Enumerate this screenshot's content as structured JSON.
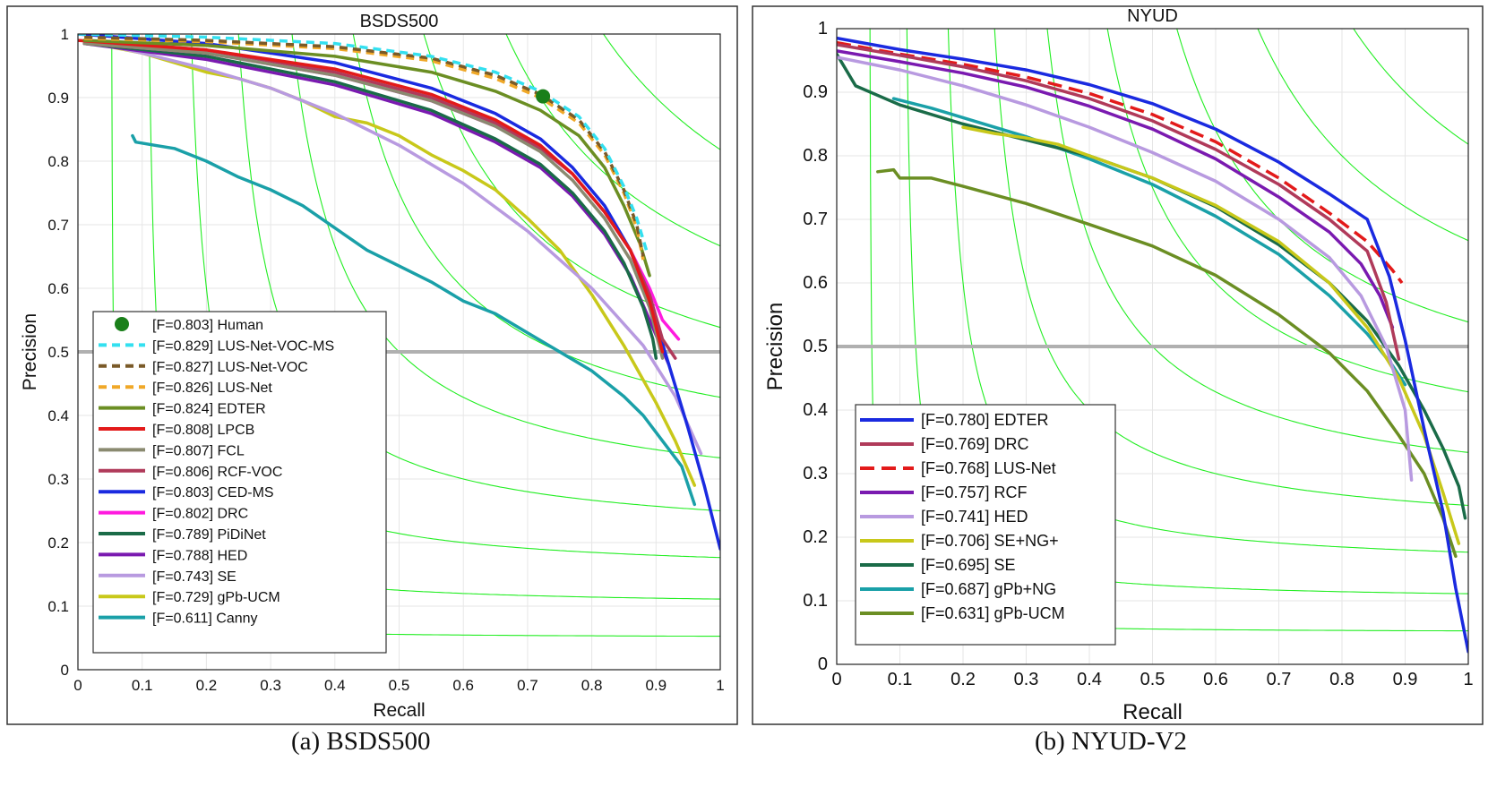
{
  "captions": {
    "left": "(a) BSDS500",
    "right": "(b) NYUD-V2"
  },
  "chart_data": [
    {
      "type": "line",
      "title": "BSDS500",
      "xlabel": "Recall",
      "ylabel": "Precision",
      "xlim": [
        0,
        1
      ],
      "ylim": [
        0,
        1
      ],
      "xticks": [
        0,
        0.1,
        0.2,
        0.3,
        0.4,
        0.5,
        0.6,
        0.7,
        0.8,
        0.9,
        1
      ],
      "yticks": [
        0,
        0.1,
        0.2,
        0.3,
        0.4,
        0.5,
        0.6,
        0.7,
        0.8,
        0.9,
        1
      ],
      "xtick_labels": [
        "0",
        "0.1",
        "0.2",
        "0.3",
        "0.4",
        "0.5",
        "0.6",
        "0.7",
        "0.8",
        "0.9",
        "1"
      ],
      "ytick_labels": [
        "0",
        "0.1",
        "0.2",
        "0.3",
        "0.4",
        "0.5",
        "0.6",
        "0.7",
        "0.8",
        "0.9",
        "1"
      ],
      "grid": true,
      "legend_position": "bottom-left",
      "iso_f": [
        0.1,
        0.2,
        0.3,
        0.4,
        0.5,
        0.6,
        0.7,
        0.8,
        0.9
      ],
      "reference_line": 0.5,
      "human_point": {
        "name": "[F=0.803] Human",
        "x": 0.724,
        "y": 0.902,
        "color": "#1a7f1a"
      },
      "series": [
        {
          "name": "[F=0.829] LUS-Net-VOC-MS",
          "color": "#33e0f0",
          "dash": "9,6",
          "x": [
            0,
            0.2,
            0.4,
            0.55,
            0.65,
            0.72,
            0.78,
            0.82,
            0.85,
            0.87,
            0.885
          ],
          "y": [
            1,
            0.995,
            0.985,
            0.965,
            0.94,
            0.91,
            0.87,
            0.82,
            0.76,
            0.71,
            0.66
          ]
        },
        {
          "name": "[F=0.827] LUS-Net-VOC",
          "color": "#7a5a28",
          "dash": "9,6",
          "x": [
            0.01,
            0.2,
            0.4,
            0.55,
            0.65,
            0.72,
            0.78,
            0.82,
            0.85,
            0.87,
            0.88
          ],
          "y": [
            0.995,
            0.99,
            0.98,
            0.962,
            0.935,
            0.905,
            0.865,
            0.815,
            0.755,
            0.7,
            0.65
          ]
        },
        {
          "name": "[F=0.826] LUS-Net",
          "color": "#f0a828",
          "dash": "9,6",
          "x": [
            0.01,
            0.2,
            0.4,
            0.55,
            0.65,
            0.72,
            0.78,
            0.82,
            0.85,
            0.87,
            0.88
          ],
          "y": [
            0.993,
            0.988,
            0.977,
            0.958,
            0.93,
            0.9,
            0.86,
            0.81,
            0.75,
            0.695,
            0.645
          ]
        },
        {
          "name": "[F=0.824] EDTER",
          "color": "#6b8e23",
          "dash": "",
          "x": [
            0.01,
            0.2,
            0.4,
            0.55,
            0.65,
            0.72,
            0.78,
            0.82,
            0.85,
            0.875,
            0.89
          ],
          "y": [
            0.99,
            0.982,
            0.965,
            0.94,
            0.91,
            0.88,
            0.84,
            0.79,
            0.73,
            0.67,
            0.62
          ]
        },
        {
          "name": "[F=0.808] LPCB",
          "color": "#e31a1a",
          "dash": "",
          "x": [
            0,
            0.2,
            0.4,
            0.55,
            0.65,
            0.72,
            0.77,
            0.82,
            0.86,
            0.89,
            0.91
          ],
          "y": [
            0.99,
            0.975,
            0.945,
            0.905,
            0.865,
            0.825,
            0.78,
            0.72,
            0.66,
            0.58,
            0.5
          ]
        },
        {
          "name": "[F=0.807] FCL",
          "color": "#8a8a70",
          "dash": "",
          "x": [
            0.01,
            0.2,
            0.4,
            0.55,
            0.65,
            0.72,
            0.77,
            0.82,
            0.86,
            0.89,
            0.91
          ],
          "y": [
            0.985,
            0.97,
            0.935,
            0.895,
            0.855,
            0.815,
            0.77,
            0.71,
            0.645,
            0.57,
            0.49
          ]
        },
        {
          "name": "[F=0.806] RCF-VOC",
          "color": "#b03a5a",
          "dash": "",
          "x": [
            0.01,
            0.2,
            0.4,
            0.55,
            0.65,
            0.72,
            0.77,
            0.82,
            0.86,
            0.89,
            0.91,
            0.93
          ],
          "y": [
            0.99,
            0.975,
            0.94,
            0.9,
            0.86,
            0.82,
            0.78,
            0.72,
            0.66,
            0.59,
            0.52,
            0.49
          ]
        },
        {
          "name": "[F=0.803] CED-MS",
          "color": "#1a2ae0",
          "dash": "",
          "x": [
            0,
            0.2,
            0.4,
            0.55,
            0.65,
            0.72,
            0.77,
            0.82,
            0.86,
            0.89,
            0.92,
            0.95,
            0.975,
            1
          ],
          "y": [
            1,
            0.985,
            0.955,
            0.915,
            0.875,
            0.835,
            0.79,
            0.73,
            0.66,
            0.58,
            0.48,
            0.38,
            0.29,
            0.19
          ]
        },
        {
          "name": "[F=0.802] DRC",
          "color": "#ff1adf",
          "dash": "",
          "x": [
            0.01,
            0.2,
            0.4,
            0.55,
            0.65,
            0.72,
            0.77,
            0.82,
            0.86,
            0.89,
            0.91,
            0.935
          ],
          "y": [
            0.985,
            0.97,
            0.935,
            0.895,
            0.855,
            0.82,
            0.78,
            0.72,
            0.66,
            0.6,
            0.55,
            0.52
          ]
        },
        {
          "name": "[F=0.789] PiDiNet",
          "color": "#1a6b48",
          "dash": "",
          "x": [
            0.01,
            0.2,
            0.4,
            0.55,
            0.65,
            0.72,
            0.77,
            0.82,
            0.85,
            0.88,
            0.895,
            0.9
          ],
          "y": [
            0.985,
            0.965,
            0.925,
            0.88,
            0.835,
            0.795,
            0.75,
            0.69,
            0.64,
            0.57,
            0.52,
            0.49
          ]
        },
        {
          "name": "[F=0.788] HED",
          "color": "#7a1ab0",
          "dash": "",
          "x": [
            0.01,
            0.2,
            0.4,
            0.55,
            0.65,
            0.72,
            0.77,
            0.82,
            0.86,
            0.89,
            0.92
          ],
          "y": [
            0.985,
            0.96,
            0.92,
            0.875,
            0.83,
            0.79,
            0.745,
            0.685,
            0.62,
            0.55,
            0.48
          ]
        },
        {
          "name": "[F=0.743] SE",
          "color": "#b89ae0",
          "dash": "",
          "x": [
            0.01,
            0.1,
            0.2,
            0.3,
            0.4,
            0.5,
            0.6,
            0.7,
            0.8,
            0.88,
            0.93,
            0.97
          ],
          "y": [
            0.99,
            0.97,
            0.945,
            0.915,
            0.875,
            0.825,
            0.765,
            0.69,
            0.6,
            0.51,
            0.43,
            0.34
          ]
        },
        {
          "name": "[F=0.729] gPb-UCM",
          "color": "#c8c81a",
          "dash": "",
          "x": [
            0.05,
            0.1,
            0.15,
            0.2,
            0.25,
            0.3,
            0.35,
            0.4,
            0.45,
            0.5,
            0.55,
            0.6,
            0.65,
            0.7,
            0.75,
            0.8,
            0.85,
            0.9,
            0.93,
            0.96
          ],
          "y": [
            0.98,
            0.97,
            0.955,
            0.94,
            0.93,
            0.915,
            0.895,
            0.87,
            0.86,
            0.84,
            0.81,
            0.785,
            0.755,
            0.71,
            0.66,
            0.59,
            0.51,
            0.42,
            0.36,
            0.29
          ]
        },
        {
          "name": "[F=0.611] Canny",
          "color": "#1aa0a8",
          "dash": "",
          "x": [
            0.085,
            0.09,
            0.12,
            0.15,
            0.2,
            0.25,
            0.3,
            0.35,
            0.4,
            0.45,
            0.5,
            0.55,
            0.6,
            0.65,
            0.7,
            0.75,
            0.8,
            0.85,
            0.88,
            0.91,
            0.94,
            0.96
          ],
          "y": [
            0.84,
            0.83,
            0.825,
            0.82,
            0.8,
            0.775,
            0.755,
            0.73,
            0.695,
            0.66,
            0.635,
            0.61,
            0.58,
            0.56,
            0.53,
            0.5,
            0.47,
            0.43,
            0.4,
            0.36,
            0.32,
            0.26
          ]
        }
      ]
    },
    {
      "type": "line",
      "title": "NYUD",
      "xlabel": "Recall",
      "ylabel": "Precision",
      "xlim": [
        0,
        1
      ],
      "ylim": [
        0,
        1
      ],
      "xticks": [
        0,
        0.1,
        0.2,
        0.3,
        0.4,
        0.5,
        0.6,
        0.7,
        0.8,
        0.9,
        1
      ],
      "yticks": [
        0,
        0.1,
        0.2,
        0.3,
        0.4,
        0.5,
        0.6,
        0.7,
        0.8,
        0.9,
        1
      ],
      "xtick_labels": [
        "0",
        "0.1",
        "0.2",
        "0.3",
        "0.4",
        "0.5",
        "0.6",
        "0.7",
        "0.8",
        "0.9",
        "1"
      ],
      "ytick_labels": [
        "0",
        "0.1",
        "0.2",
        "0.3",
        "0.4",
        "0.5",
        "0.6",
        "0.7",
        "0.8",
        "0.9",
        "1"
      ],
      "grid": true,
      "legend_position": "bottom-left",
      "iso_f": [
        0.1,
        0.2,
        0.3,
        0.4,
        0.5,
        0.6,
        0.7,
        0.8,
        0.9
      ],
      "reference_line": 0.5,
      "series": [
        {
          "name": "[F=0.780] EDTER",
          "color": "#1a2ae0",
          "dash": "",
          "x": [
            0,
            0.1,
            0.2,
            0.3,
            0.4,
            0.5,
            0.6,
            0.7,
            0.78,
            0.84,
            0.875,
            0.9,
            0.93,
            0.96,
            0.98,
            1
          ],
          "y": [
            0.985,
            0.967,
            0.952,
            0.935,
            0.912,
            0.882,
            0.842,
            0.79,
            0.74,
            0.7,
            0.61,
            0.51,
            0.37,
            0.24,
            0.12,
            0.02
          ]
        },
        {
          "name": "[F=0.769] DRC",
          "color": "#b03a5a",
          "dash": "",
          "x": [
            0,
            0.1,
            0.2,
            0.3,
            0.4,
            0.5,
            0.6,
            0.7,
            0.78,
            0.84,
            0.87,
            0.89
          ],
          "y": [
            0.975,
            0.958,
            0.94,
            0.918,
            0.89,
            0.855,
            0.81,
            0.755,
            0.7,
            0.65,
            0.57,
            0.48
          ]
        },
        {
          "name": "[F=0.768] LUS-Net",
          "color": "#e31a1a",
          "dash": "16,8",
          "x": [
            0,
            0.1,
            0.2,
            0.3,
            0.4,
            0.5,
            0.6,
            0.7,
            0.78,
            0.84,
            0.88,
            0.895
          ],
          "y": [
            0.978,
            0.96,
            0.944,
            0.924,
            0.898,
            0.865,
            0.822,
            0.765,
            0.71,
            0.665,
            0.62,
            0.6
          ]
        },
        {
          "name": "[F=0.757] RCF",
          "color": "#7a1ab0",
          "dash": "",
          "x": [
            0,
            0.1,
            0.2,
            0.3,
            0.4,
            0.5,
            0.6,
            0.7,
            0.78,
            0.83,
            0.86,
            0.88
          ],
          "y": [
            0.965,
            0.948,
            0.93,
            0.908,
            0.878,
            0.842,
            0.795,
            0.735,
            0.68,
            0.63,
            0.58,
            0.53
          ]
        },
        {
          "name": "[F=0.741] HED",
          "color": "#b89ae0",
          "dash": "",
          "x": [
            0,
            0.1,
            0.2,
            0.3,
            0.4,
            0.5,
            0.6,
            0.7,
            0.78,
            0.83,
            0.87,
            0.9,
            0.91
          ],
          "y": [
            0.955,
            0.935,
            0.91,
            0.88,
            0.845,
            0.805,
            0.76,
            0.7,
            0.64,
            0.58,
            0.5,
            0.4,
            0.29
          ]
        },
        {
          "name": "[F=0.706] SE+NG+",
          "color": "#c8c81a",
          "dash": "",
          "x": [
            0.2,
            0.25,
            0.3,
            0.35,
            0.4,
            0.5,
            0.6,
            0.7,
            0.78,
            0.84,
            0.89,
            0.93,
            0.96,
            0.985
          ],
          "y": [
            0.845,
            0.835,
            0.828,
            0.818,
            0.8,
            0.765,
            0.722,
            0.665,
            0.6,
            0.53,
            0.45,
            0.36,
            0.27,
            0.19
          ]
        },
        {
          "name": "[F=0.695] SE",
          "color": "#1a6b48",
          "dash": "",
          "x": [
            0,
            0.03,
            0.1,
            0.2,
            0.3,
            0.4,
            0.5,
            0.6,
            0.7,
            0.78,
            0.84,
            0.89,
            0.93,
            0.96,
            0.985,
            0.995
          ],
          "y": [
            0.96,
            0.91,
            0.88,
            0.85,
            0.825,
            0.8,
            0.765,
            0.72,
            0.66,
            0.6,
            0.54,
            0.47,
            0.4,
            0.34,
            0.28,
            0.23
          ]
        },
        {
          "name": "[F=0.687] gPb+NG",
          "color": "#1aa0a8",
          "dash": "",
          "x": [
            0.09,
            0.15,
            0.2,
            0.3,
            0.4,
            0.5,
            0.6,
            0.7,
            0.78,
            0.84,
            0.88,
            0.9
          ],
          "y": [
            0.89,
            0.875,
            0.86,
            0.83,
            0.795,
            0.755,
            0.705,
            0.645,
            0.58,
            0.52,
            0.47,
            0.44
          ]
        },
        {
          "name": "[F=0.631] gPb-UCM",
          "color": "#6b8e23",
          "dash": "",
          "x": [
            0.065,
            0.09,
            0.1,
            0.15,
            0.2,
            0.3,
            0.4,
            0.5,
            0.6,
            0.7,
            0.78,
            0.84,
            0.89,
            0.93,
            0.96,
            0.98
          ],
          "y": [
            0.775,
            0.778,
            0.765,
            0.765,
            0.752,
            0.725,
            0.692,
            0.658,
            0.612,
            0.55,
            0.49,
            0.43,
            0.36,
            0.3,
            0.23,
            0.17
          ]
        }
      ]
    }
  ]
}
